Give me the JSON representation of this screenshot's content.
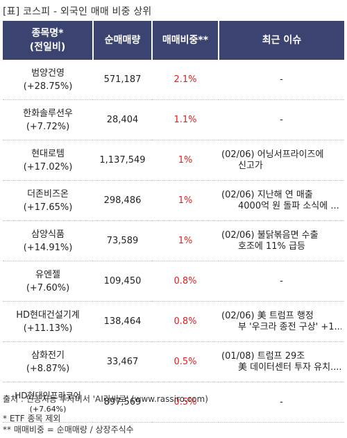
{
  "title": "[표] 코스피 - 외국인 매매 비중 상위",
  "headers": {
    "name_line1": "종목명*",
    "name_line2": "(전일비)",
    "volume": "순매매량",
    "ratio": "매매비중**",
    "issue": "최근 이슈"
  },
  "rows": [
    {
      "name": "범양건영",
      "change": "(+28.75%)",
      "volume": "571,187",
      "ratio": "2.1%",
      "issue": [
        "-"
      ]
    },
    {
      "name": "한화솔루션우",
      "change": "(+7.72%)",
      "volume": "28,404",
      "ratio": "1.1%",
      "issue": [
        "-"
      ]
    },
    {
      "name": "현대로템",
      "change": "(+17.02%)",
      "volume": "1,137,549",
      "ratio": "1%",
      "issue": [
        "(02/06) 어닝서프라이즈에",
        "신고가"
      ]
    },
    {
      "name": "더존비즈온",
      "change": "(+17.65%)",
      "volume": "298,486",
      "ratio": "1%",
      "issue": [
        "(02/06) 지난해 연 매출",
        "4000억 원 돌파 소식에 ..."
      ]
    },
    {
      "name": "삼양식품",
      "change": "(+14.91%)",
      "volume": "73,589",
      "ratio": "1%",
      "issue": [
        "(02/06) 불닭볶음면 수출",
        "호조에 11% 급등"
      ]
    },
    {
      "name": "유엔젤",
      "change": "(+7.60%)",
      "volume": "109,450",
      "ratio": "0.8%",
      "issue": [
        "-"
      ]
    },
    {
      "name": "HD현대건설기계",
      "change": "(+11.13%)",
      "volume": "138,464",
      "ratio": "0.8%",
      "issue": [
        "(02/06) 美 트럼프 행정",
        "부 '우크라 종전 구상' +1..."
      ]
    },
    {
      "name": "삼화전기",
      "change": "(+8.87%)",
      "volume": "33,467",
      "ratio": "0.5%",
      "issue": [
        "(01/08) 트럼프 29조",
        "美 데이터센터 투자 유치......"
      ]
    },
    {
      "name": "HD현대인프라코어",
      "change": "(+7.64%)",
      "volume": "897,569",
      "ratio": "0.5%",
      "issue": [
        "-"
      ]
    }
  ],
  "footer": {
    "source": "출처 : 인공지능 투자비서 'AI라씨로' (www.rassiro.com)",
    "note1": "* ETF 종목 제외",
    "note2": "** 매매비중 = 순매매량 / 상장주식수"
  },
  "colors": {
    "header_bg": "#3b4470",
    "ratio_text": "#e02020"
  }
}
